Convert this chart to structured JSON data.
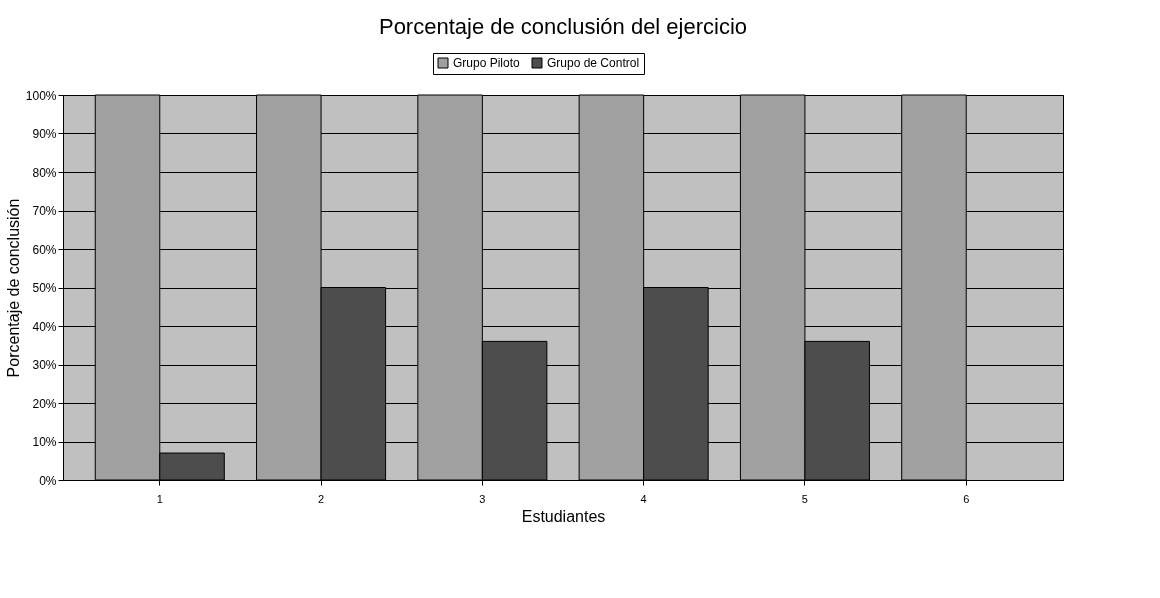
{
  "chart_data": {
    "type": "bar",
    "title": "Porcentaje de conclusión del ejercicio",
    "xlabel": "Estudiantes",
    "ylabel": "Porcentaje de conclusión",
    "categories": [
      "1",
      "2",
      "3",
      "4",
      "5",
      "6"
    ],
    "series": [
      {
        "name": "Grupo Piloto",
        "color": "#a0a0a0",
        "values": [
          100,
          100,
          100,
          100,
          100,
          100
        ]
      },
      {
        "name": "Grupo de Control",
        "color": "#4d4d4d",
        "values": [
          7,
          50,
          36,
          50,
          36,
          null
        ]
      }
    ],
    "ylim": [
      0,
      100
    ],
    "yticks": [
      {
        "value": 0,
        "label": "0%"
      },
      {
        "value": 10,
        "label": "10%"
      },
      {
        "value": 20,
        "label": "20%"
      },
      {
        "value": 30,
        "label": "30%"
      },
      {
        "value": 40,
        "label": "40%"
      },
      {
        "value": 50,
        "label": "50%"
      },
      {
        "value": 60,
        "label": "60%"
      },
      {
        "value": 70,
        "label": "70%"
      },
      {
        "value": 80,
        "label": "80%"
      },
      {
        "value": 90,
        "label": "90%"
      },
      {
        "value": 100,
        "label": "100%"
      }
    ],
    "grid": "y",
    "legend": "top"
  }
}
